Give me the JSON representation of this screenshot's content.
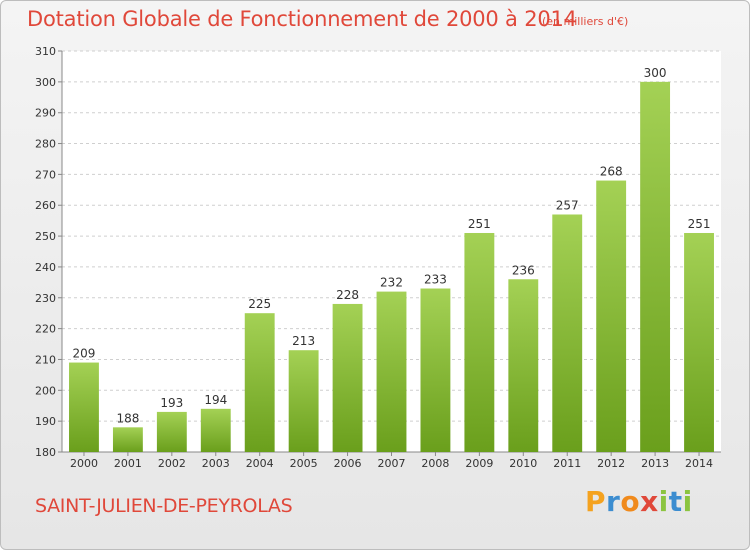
{
  "chart_data": {
    "type": "bar",
    "title": "Dotation Globale de Fonctionnement de 2000 à 2014",
    "subtitle": "(en milliers d'€)",
    "categories": [
      "2000",
      "2001",
      "2002",
      "2003",
      "2004",
      "2005",
      "2006",
      "2007",
      "2008",
      "2009",
      "2010",
      "2011",
      "2012",
      "2013",
      "2014"
    ],
    "values": [
      209,
      188,
      193,
      194,
      225,
      213,
      228,
      232,
      233,
      251,
      236,
      257,
      268,
      300,
      251
    ],
    "ylim": [
      180,
      310
    ],
    "yticks": [
      180,
      190,
      200,
      210,
      220,
      230,
      240,
      250,
      260,
      270,
      280,
      290,
      300,
      310
    ],
    "grid": true,
    "xlabel": "",
    "ylabel": "",
    "bar_color_top": "#a4d155",
    "bar_color_bottom": "#6a9f1c"
  },
  "commune": "SAINT-JULIEN-DE-PEYROLAS",
  "brand": {
    "letters": [
      "P",
      "r",
      "o",
      "x",
      "i",
      "t",
      "i"
    ],
    "colors": [
      "#f4a21f",
      "#3c8dd0",
      "#f08a1c",
      "#e0483a",
      "#8bc43f",
      "#3c8dd0",
      "#8bc43f"
    ]
  },
  "colors": {
    "accent": "#e0483a"
  }
}
